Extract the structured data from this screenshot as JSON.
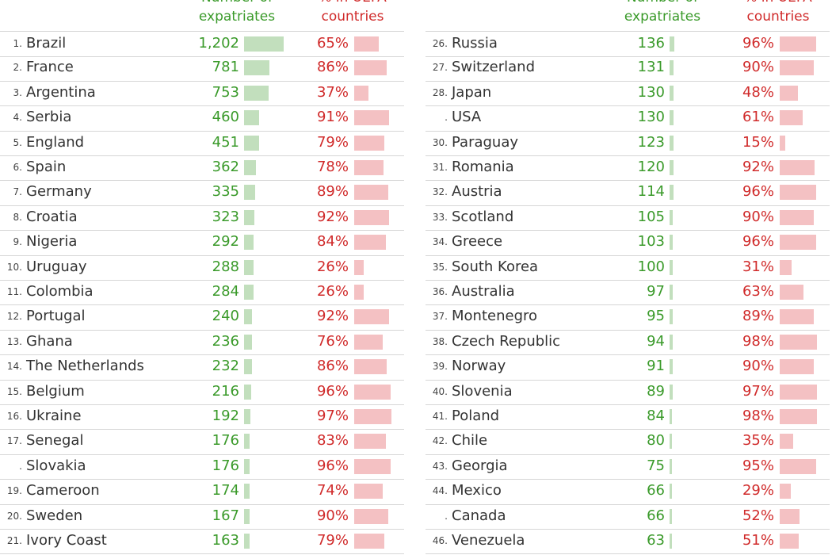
{
  "chart_data": {
    "type": "table",
    "columns": {
      "number_header": [
        "Number of",
        "expatriates"
      ],
      "percent_header": [
        "% in UEFA",
        "countries"
      ]
    },
    "colors": {
      "number": "#3a9a2a",
      "number_bar": "#c2dfbd",
      "percent": "#d02a2a",
      "percent_bar": "#f4c1c3"
    },
    "number_scale_max": 1202,
    "percent_scale_max": 100,
    "rows": [
      {
        "rank": "1.",
        "country": "Brazil",
        "number": 1202,
        "number_label": "1,202",
        "percent": 65
      },
      {
        "rank": "2.",
        "country": "France",
        "number": 781,
        "number_label": "781",
        "percent": 86
      },
      {
        "rank": "3.",
        "country": "Argentina",
        "number": 753,
        "number_label": "753",
        "percent": 37
      },
      {
        "rank": "4.",
        "country": "Serbia",
        "number": 460,
        "number_label": "460",
        "percent": 91
      },
      {
        "rank": "5.",
        "country": "England",
        "number": 451,
        "number_label": "451",
        "percent": 79
      },
      {
        "rank": "6.",
        "country": "Spain",
        "number": 362,
        "number_label": "362",
        "percent": 78
      },
      {
        "rank": "7.",
        "country": "Germany",
        "number": 335,
        "number_label": "335",
        "percent": 89
      },
      {
        "rank": "8.",
        "country": "Croatia",
        "number": 323,
        "number_label": "323",
        "percent": 92
      },
      {
        "rank": "9.",
        "country": "Nigeria",
        "number": 292,
        "number_label": "292",
        "percent": 84
      },
      {
        "rank": "10.",
        "country": "Uruguay",
        "number": 288,
        "number_label": "288",
        "percent": 26
      },
      {
        "rank": "11.",
        "country": "Colombia",
        "number": 284,
        "number_label": "284",
        "percent": 26
      },
      {
        "rank": "12.",
        "country": "Portugal",
        "number": 240,
        "number_label": "240",
        "percent": 92
      },
      {
        "rank": "13.",
        "country": "Ghana",
        "number": 236,
        "number_label": "236",
        "percent": 76
      },
      {
        "rank": "14.",
        "country": "The Netherlands",
        "number": 232,
        "number_label": "232",
        "percent": 86
      },
      {
        "rank": "15.",
        "country": "Belgium",
        "number": 216,
        "number_label": "216",
        "percent": 96
      },
      {
        "rank": "16.",
        "country": "Ukraine",
        "number": 192,
        "number_label": "192",
        "percent": 97
      },
      {
        "rank": "17.",
        "country": "Senegal",
        "number": 176,
        "number_label": "176",
        "percent": 83
      },
      {
        "rank": ".",
        "country": "Slovakia",
        "number": 176,
        "number_label": "176",
        "percent": 96
      },
      {
        "rank": "19.",
        "country": "Cameroon",
        "number": 174,
        "number_label": "174",
        "percent": 74
      },
      {
        "rank": "20.",
        "country": "Sweden",
        "number": 167,
        "number_label": "167",
        "percent": 90
      },
      {
        "rank": "21.",
        "country": "Ivory Coast",
        "number": 163,
        "number_label": "163",
        "percent": 79
      },
      {
        "rank": "26.",
        "country": "Russia",
        "number": 136,
        "number_label": "136",
        "percent": 96
      },
      {
        "rank": "27.",
        "country": "Switzerland",
        "number": 131,
        "number_label": "131",
        "percent": 90
      },
      {
        "rank": "28.",
        "country": "Japan",
        "number": 130,
        "number_label": "130",
        "percent": 48
      },
      {
        "rank": ".",
        "country": "USA",
        "number": 130,
        "number_label": "130",
        "percent": 61
      },
      {
        "rank": "30.",
        "country": "Paraguay",
        "number": 123,
        "number_label": "123",
        "percent": 15
      },
      {
        "rank": "31.",
        "country": "Romania",
        "number": 120,
        "number_label": "120",
        "percent": 92
      },
      {
        "rank": "32.",
        "country": "Austria",
        "number": 114,
        "number_label": "114",
        "percent": 96
      },
      {
        "rank": "33.",
        "country": "Scotland",
        "number": 105,
        "number_label": "105",
        "percent": 90
      },
      {
        "rank": "34.",
        "country": "Greece",
        "number": 103,
        "number_label": "103",
        "percent": 96
      },
      {
        "rank": "35.",
        "country": "South Korea",
        "number": 100,
        "number_label": "100",
        "percent": 31
      },
      {
        "rank": "36.",
        "country": "Australia",
        "number": 97,
        "number_label": "97",
        "percent": 63
      },
      {
        "rank": "37.",
        "country": "Montenegro",
        "number": 95,
        "number_label": "95",
        "percent": 89
      },
      {
        "rank": "38.",
        "country": "Czech Republic",
        "number": 94,
        "number_label": "94",
        "percent": 98
      },
      {
        "rank": "39.",
        "country": "Norway",
        "number": 91,
        "number_label": "91",
        "percent": 90
      },
      {
        "rank": "40.",
        "country": "Slovenia",
        "number": 89,
        "number_label": "89",
        "percent": 97
      },
      {
        "rank": "41.",
        "country": "Poland",
        "number": 84,
        "number_label": "84",
        "percent": 98
      },
      {
        "rank": "42.",
        "country": "Chile",
        "number": 80,
        "number_label": "80",
        "percent": 35
      },
      {
        "rank": "43.",
        "country": "Georgia",
        "number": 75,
        "number_label": "75",
        "percent": 95
      },
      {
        "rank": "44.",
        "country": "Mexico",
        "number": 66,
        "number_label": "66",
        "percent": 29
      },
      {
        "rank": ".",
        "country": "Canada",
        "number": 66,
        "number_label": "66",
        "percent": 52
      },
      {
        "rank": "46.",
        "country": "Venezuela",
        "number": 63,
        "number_label": "63",
        "percent": 51
      }
    ]
  }
}
